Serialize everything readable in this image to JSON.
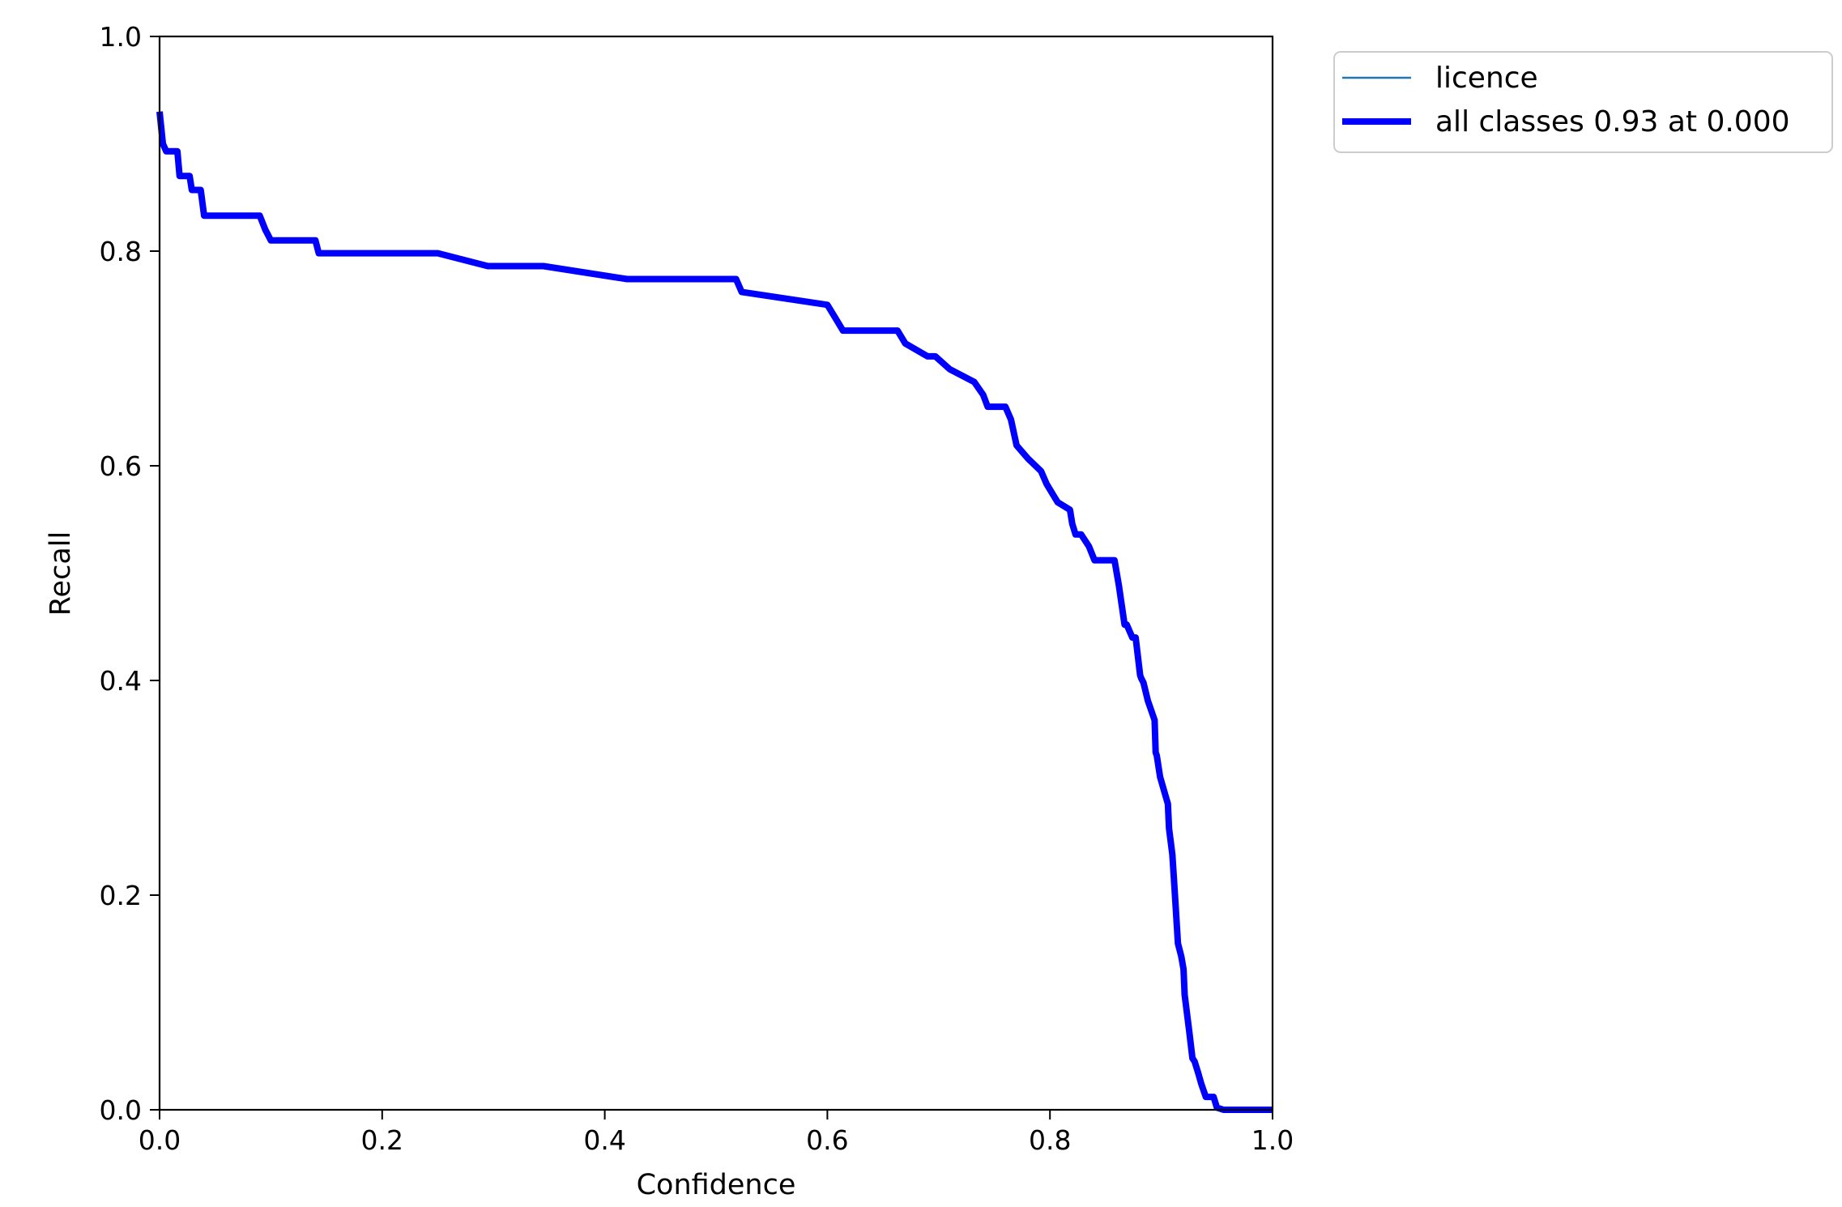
{
  "chart_data": {
    "type": "line",
    "title": "",
    "xlabel": "Confidence",
    "ylabel": "Recall",
    "xlim": [
      0,
      1
    ],
    "ylim": [
      0,
      1
    ],
    "xticks": [
      "0.0",
      "0.2",
      "0.4",
      "0.6",
      "0.8",
      "1.0"
    ],
    "yticks": [
      "0.0",
      "0.2",
      "0.4",
      "0.6",
      "0.8",
      "1.0"
    ],
    "grid": false,
    "legend_position": "outside top-right",
    "series": [
      {
        "name": "licence",
        "color": "#1f77b4",
        "x": [
          0.0,
          0.003,
          0.006,
          0.016,
          0.018,
          0.027,
          0.029,
          0.037,
          0.04,
          0.09,
          0.095,
          0.1,
          0.14,
          0.143,
          0.25,
          0.295,
          0.345,
          0.42,
          0.518,
          0.523,
          0.6,
          0.607,
          0.614,
          0.663,
          0.67,
          0.69,
          0.697,
          0.71,
          0.732,
          0.74,
          0.744,
          0.76,
          0.765,
          0.77,
          0.78,
          0.792,
          0.797,
          0.804,
          0.807,
          0.818,
          0.82,
          0.823,
          0.828,
          0.835,
          0.84,
          0.843,
          0.858,
          0.862,
          0.867,
          0.869,
          0.874,
          0.877,
          0.881,
          0.882,
          0.884,
          0.888,
          0.889,
          0.894,
          0.895,
          0.896,
          0.899,
          0.904,
          0.906,
          0.907,
          0.91,
          0.912,
          0.913,
          0.915,
          0.918,
          0.92,
          0.921,
          0.925,
          0.928,
          0.93,
          0.933,
          0.936,
          0.94,
          0.947,
          0.95,
          0.956,
          0.957,
          0.958,
          0.97,
          1.0
        ],
        "y": [
          0.93,
          0.9,
          0.893,
          0.893,
          0.87,
          0.87,
          0.857,
          0.857,
          0.833,
          0.833,
          0.82,
          0.81,
          0.81,
          0.798,
          0.798,
          0.786,
          0.786,
          0.774,
          0.774,
          0.762,
          0.75,
          0.738,
          0.726,
          0.726,
          0.714,
          0.702,
          0.702,
          0.69,
          0.678,
          0.666,
          0.655,
          0.655,
          0.643,
          0.619,
          0.607,
          0.595,
          0.583,
          0.571,
          0.566,
          0.559,
          0.546,
          0.536,
          0.536,
          0.525,
          0.512,
          0.512,
          0.512,
          0.488,
          0.452,
          0.452,
          0.44,
          0.44,
          0.405,
          0.402,
          0.398,
          0.381,
          0.378,
          0.363,
          0.333,
          0.33,
          0.31,
          0.292,
          0.285,
          0.262,
          0.238,
          0.205,
          0.188,
          0.155,
          0.143,
          0.131,
          0.107,
          0.074,
          0.048,
          0.045,
          0.035,
          0.024,
          0.012,
          0.012,
          0.002,
          0.0,
          0.0,
          0.0,
          0.0,
          0.0
        ]
      },
      {
        "name": "all classes 0.93 at 0.000",
        "color": "#0000ff",
        "x": [
          0.0,
          0.003,
          0.006,
          0.016,
          0.018,
          0.027,
          0.029,
          0.037,
          0.04,
          0.09,
          0.095,
          0.1,
          0.14,
          0.143,
          0.25,
          0.295,
          0.345,
          0.42,
          0.518,
          0.523,
          0.6,
          0.607,
          0.614,
          0.663,
          0.67,
          0.69,
          0.697,
          0.71,
          0.732,
          0.74,
          0.744,
          0.76,
          0.765,
          0.77,
          0.78,
          0.792,
          0.797,
          0.804,
          0.807,
          0.818,
          0.82,
          0.823,
          0.828,
          0.835,
          0.84,
          0.843,
          0.858,
          0.862,
          0.867,
          0.869,
          0.874,
          0.877,
          0.881,
          0.882,
          0.884,
          0.888,
          0.889,
          0.894,
          0.895,
          0.896,
          0.899,
          0.904,
          0.906,
          0.907,
          0.91,
          0.912,
          0.913,
          0.915,
          0.918,
          0.92,
          0.921,
          0.925,
          0.928,
          0.93,
          0.933,
          0.936,
          0.94,
          0.947,
          0.95,
          0.956,
          0.957,
          0.958,
          0.97,
          1.0
        ],
        "y": [
          0.93,
          0.9,
          0.893,
          0.893,
          0.87,
          0.87,
          0.857,
          0.857,
          0.833,
          0.833,
          0.82,
          0.81,
          0.81,
          0.798,
          0.798,
          0.786,
          0.786,
          0.774,
          0.774,
          0.762,
          0.75,
          0.738,
          0.726,
          0.726,
          0.714,
          0.702,
          0.702,
          0.69,
          0.678,
          0.666,
          0.655,
          0.655,
          0.643,
          0.619,
          0.607,
          0.595,
          0.583,
          0.571,
          0.566,
          0.559,
          0.546,
          0.536,
          0.536,
          0.525,
          0.512,
          0.512,
          0.512,
          0.488,
          0.452,
          0.452,
          0.44,
          0.44,
          0.405,
          0.402,
          0.398,
          0.381,
          0.378,
          0.363,
          0.333,
          0.33,
          0.31,
          0.292,
          0.285,
          0.262,
          0.238,
          0.205,
          0.188,
          0.155,
          0.143,
          0.131,
          0.107,
          0.074,
          0.048,
          0.045,
          0.035,
          0.024,
          0.012,
          0.012,
          0.002,
          0.0,
          0.0,
          0.0,
          0.0,
          0.0
        ]
      }
    ]
  }
}
